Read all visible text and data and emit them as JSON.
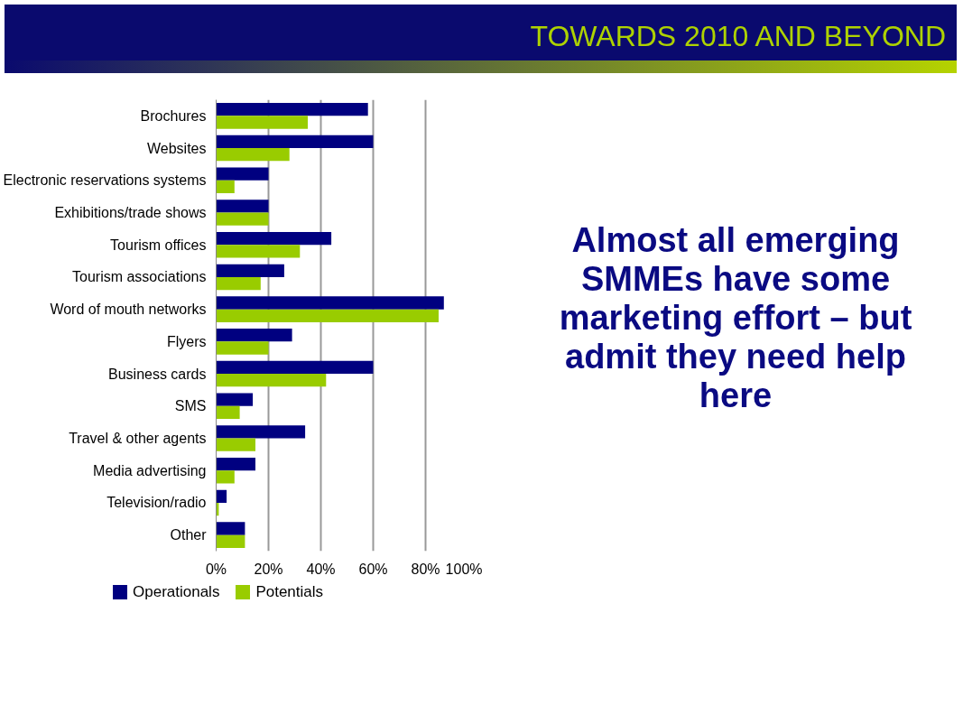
{
  "chart_data": {
    "type": "bar",
    "orientation": "horizontal",
    "title": "TOWARDS 2010 AND BEYOND",
    "categories": [
      "Brochures",
      "Websites",
      "Electronic reservations systems",
      "Exhibitions/trade shows",
      "Tourism offices",
      "Tourism associations",
      "Word of mouth networks",
      "Flyers",
      "Business cards",
      "SMS",
      "Travel & other agents",
      "Media advertising",
      "Television/radio",
      "Other"
    ],
    "series": [
      {
        "name": "Operationals",
        "color": "#000080",
        "values": [
          58,
          60,
          20,
          20,
          44,
          26,
          87,
          29,
          60,
          14,
          34,
          15,
          4,
          11
        ]
      },
      {
        "name": "Potentials",
        "color": "#99cc00",
        "values": [
          35,
          28,
          7,
          20,
          32,
          17,
          85,
          20,
          42,
          9,
          15,
          7,
          1,
          11
        ]
      }
    ],
    "xlim": [
      0,
      100
    ],
    "xticks": [
      {
        "value": 0,
        "label": "0%"
      },
      {
        "value": 20,
        "label": "20%"
      },
      {
        "value": 40,
        "label": "40%"
      },
      {
        "value": 60,
        "label": "60%"
      },
      {
        "value": 80,
        "label": "80%"
      },
      {
        "value": 100,
        "label": "100%"
      }
    ],
    "grid": "x",
    "legend": "bottom",
    "annotations": [
      "Almost all emerging SMMEs have some marketing effort  – but admit they need help here"
    ]
  }
}
